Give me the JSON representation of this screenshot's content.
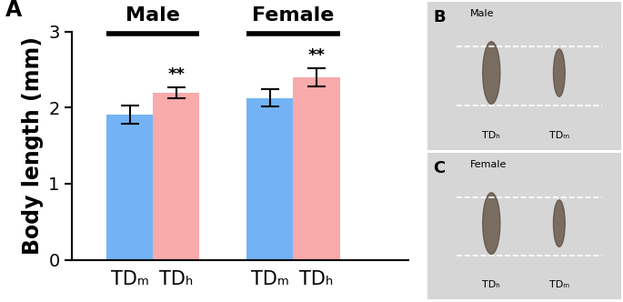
{
  "chart_data": {
    "type": "bar",
    "panel_label": "A",
    "y_label": "Body length (mm)",
    "categories": [
      "Male",
      "Female"
    ],
    "series": [
      {
        "name": "TDₘ",
        "color": "#73b3f5",
        "values": [
          1.91,
          2.13
        ],
        "errors": [
          0.12,
          0.11
        ]
      },
      {
        "name": "TDₕ",
        "color": "#f9aaaa",
        "values": [
          2.2,
          2.4
        ],
        "errors": [
          0.07,
          0.12
        ],
        "annotations": [
          "**",
          "**"
        ]
      }
    ],
    "ylim": [
      0,
      3
    ],
    "yticks": [
      0,
      1,
      2,
      3
    ],
    "grid": false
  },
  "photo_panels": [
    {
      "label": "B",
      "title": "Male",
      "items": [
        "TDₕ",
        "TDₘ"
      ]
    },
    {
      "label": "C",
      "title": "Female",
      "items": [
        "TDₕ",
        "TDₘ"
      ]
    }
  ]
}
